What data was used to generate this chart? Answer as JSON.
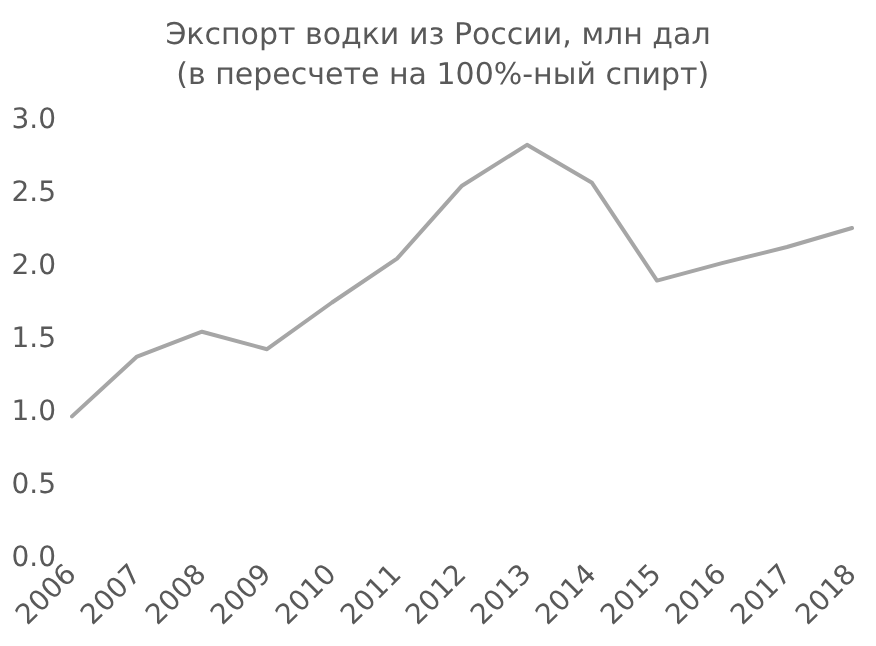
{
  "chart_data": {
    "type": "line",
    "title": "Экспорт водки из России, млн дал (в пересчете на 100%-ный спирт)",
    "categories": [
      "2006",
      "2007",
      "2008",
      "2009",
      "2010",
      "2011",
      "2012",
      "2013",
      "2014",
      "2015",
      "2016",
      "2017",
      "2018"
    ],
    "series": [
      {
        "color": "#a6a6a6",
        "values": [
          0.97,
          1.38,
          1.55,
          1.43,
          1.75,
          2.05,
          2.55,
          2.83,
          2.57,
          1.9,
          2.02,
          2.13,
          2.26
        ]
      }
    ],
    "ylim": [
      0,
      3
    ],
    "yticks": [
      {
        "value": 0,
        "label": "0.0"
      },
      {
        "value": 0.5,
        "label": "0.5"
      },
      {
        "value": 1,
        "label": "1.0"
      },
      {
        "value": 1.5,
        "label": "1.5"
      },
      {
        "value": 2,
        "label": "2.0"
      },
      {
        "value": 2.5,
        "label": "2.5"
      },
      {
        "value": 3,
        "label": "3.0"
      }
    ],
    "grid": false,
    "marker": "none",
    "line_style": "solid"
  }
}
